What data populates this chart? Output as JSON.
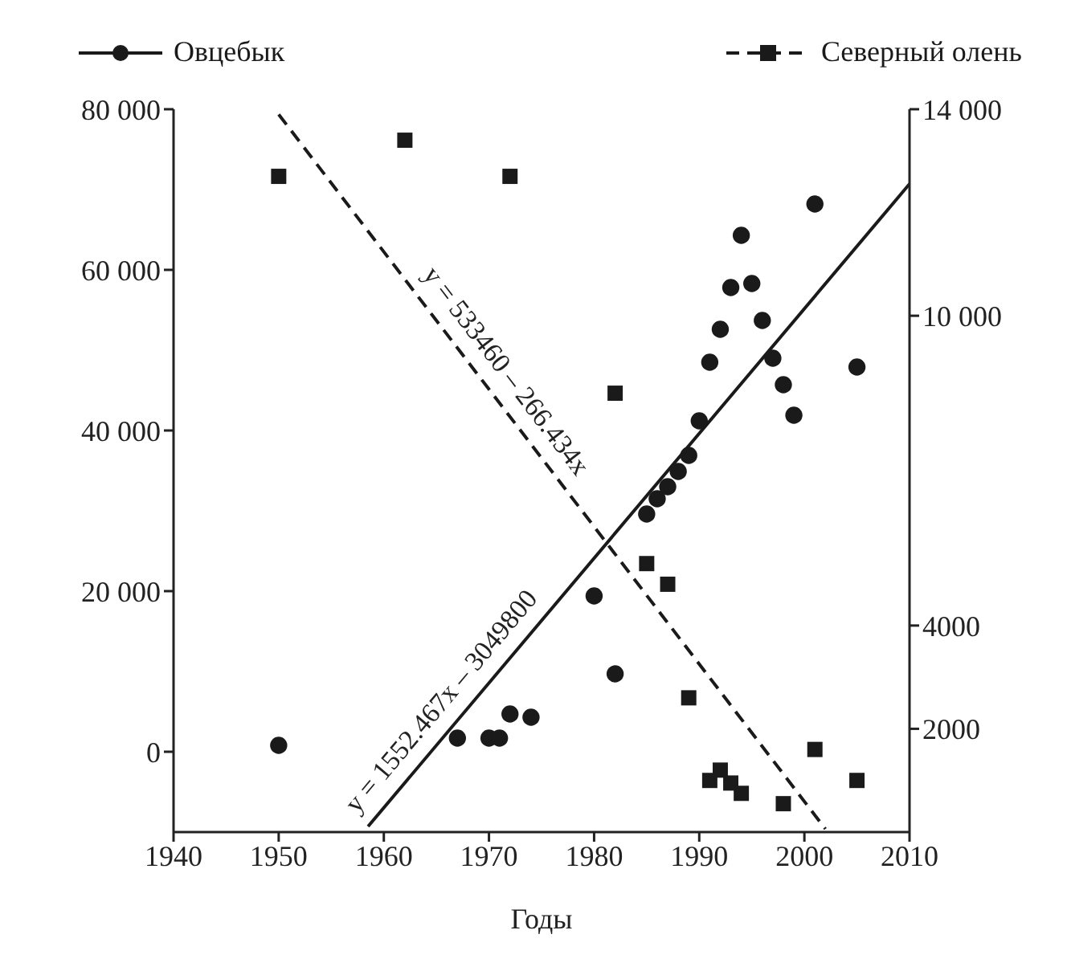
{
  "chart_data": {
    "type": "scatter",
    "xlabel": "Годы",
    "xlim": [
      1940,
      2010
    ],
    "xticks": [
      1940,
      1950,
      1960,
      1970,
      1980,
      1990,
      2000,
      2010
    ],
    "ylim": [
      -10000,
      80000
    ],
    "yticks": [
      {
        "value": 0,
        "label": "0"
      },
      {
        "value": 20000,
        "label": "20 000"
      },
      {
        "value": 40000,
        "label": "40 000"
      },
      {
        "value": 60000,
        "label": "60 000"
      },
      {
        "value": 80000,
        "label": "80 000"
      }
    ],
    "y2lim": [
      0,
      14000
    ],
    "y2ticks": [
      2000,
      4000,
      {
        "value": 10000,
        "label": "10 000"
      },
      {
        "value": 14000,
        "label": "14 000"
      }
    ],
    "legend": "top",
    "grid": false,
    "series": [
      {
        "name": "Овцебык",
        "type": "scatter",
        "marker": "circle",
        "color": "#1a1a1a",
        "x": [
          1950,
          1967,
          1970,
          1971,
          1972,
          1974,
          1980,
          1982,
          1985,
          1986,
          1987,
          1988,
          1989,
          1990,
          1991,
          1992,
          1993,
          1994,
          1995,
          1996,
          1997,
          1998,
          1999,
          2001,
          2005
        ],
        "values": [
          800,
          1700,
          1700,
          1700,
          4700,
          4300,
          19400,
          9700,
          29600,
          31500,
          33000,
          34900,
          36900,
          41200,
          48500,
          52600,
          57800,
          64300,
          58300,
          53700,
          49000,
          45700,
          41900,
          68200,
          47900
        ]
      },
      {
        "name": "Северный олень",
        "type": "scatter",
        "marker": "square",
        "axis": "y2",
        "color": "#1a1a1a",
        "x": [
          1950,
          1962,
          1972,
          1982,
          1985,
          1987,
          1989,
          1991,
          1992,
          1993,
          1994,
          1998,
          2001,
          2005
        ],
        "values": [
          12700,
          13400,
          12700,
          8500,
          5200,
          4800,
          2600,
          1000,
          1200,
          950,
          750,
          550,
          1600,
          1000
        ]
      },
      {
        "type": "line",
        "line_style": "solid",
        "color": "#1a1a1a",
        "x": [
          1958.5,
          2010
        ],
        "values": [
          -9300,
          70700
        ]
      },
      {
        "type": "line",
        "line_style": "dashed",
        "axis": "y2",
        "color": "#1a1a1a",
        "x": [
          1950,
          2002
        ],
        "values": [
          13900,
          60
        ]
      }
    ],
    "annotations": [
      "y = 1552.467x – 3049800",
      "y = 533460 – 266.434x"
    ]
  }
}
